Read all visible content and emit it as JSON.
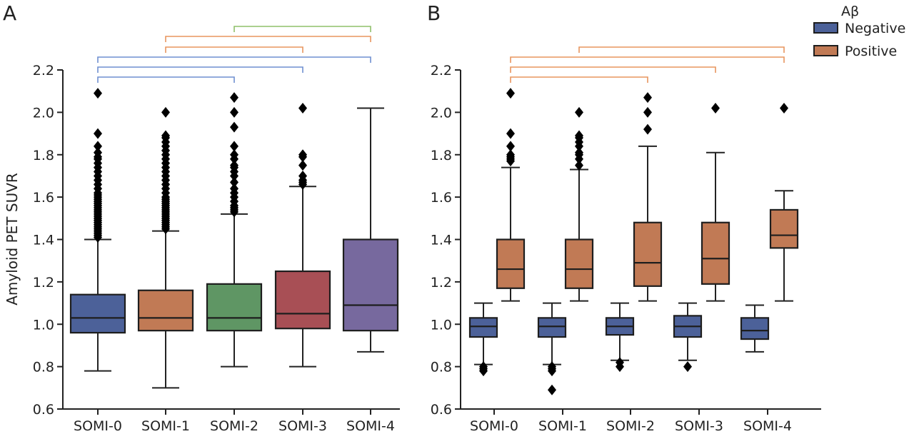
{
  "chart_data": [
    {
      "panel": "A",
      "type": "box",
      "title": "",
      "ylabel": "Amyloid PET SUVR",
      "xlabel": "",
      "ylim": [
        0.6,
        2.2
      ],
      "yticks": [
        "0.6",
        "0.8",
        "1.0",
        "1.2",
        "1.4",
        "1.6",
        "1.8",
        "2.0",
        "2.2"
      ],
      "categories": [
        "SOMI-0",
        "SOMI-1",
        "SOMI-2",
        "SOMI-3",
        "SOMI-4"
      ],
      "series": [
        {
          "name": "All",
          "boxes": [
            {
              "category": "SOMI-0",
              "color": "#4c6199",
              "whisker_low": 0.78,
              "q1": 0.96,
              "median": 1.03,
              "q3": 1.14,
              "whisker_high": 1.4,
              "outliers": [
                1.41,
                1.42,
                1.43,
                1.44,
                1.45,
                1.46,
                1.47,
                1.48,
                1.49,
                1.5,
                1.51,
                1.52,
                1.53,
                1.54,
                1.55,
                1.56,
                1.57,
                1.58,
                1.59,
                1.6,
                1.61,
                1.62,
                1.64,
                1.66,
                1.68,
                1.7,
                1.72,
                1.74,
                1.76,
                1.78,
                1.79,
                1.81,
                1.84,
                1.9,
                2.09
              ]
            },
            {
              "category": "SOMI-1",
              "color": "#c17a55",
              "whisker_low": 0.7,
              "q1": 0.97,
              "median": 1.03,
              "q3": 1.16,
              "whisker_high": 1.44,
              "outliers": [
                1.45,
                1.46,
                1.47,
                1.48,
                1.49,
                1.5,
                1.51,
                1.52,
                1.53,
                1.54,
                1.55,
                1.56,
                1.57,
                1.58,
                1.59,
                1.6,
                1.62,
                1.64,
                1.66,
                1.68,
                1.7,
                1.72,
                1.74,
                1.76,
                1.78,
                1.8,
                1.82,
                1.84,
                1.86,
                1.88,
                1.89,
                2.0
              ]
            },
            {
              "category": "SOMI-2",
              "color": "#5f9664",
              "whisker_low": 0.8,
              "q1": 0.97,
              "median": 1.03,
              "q3": 1.19,
              "whisker_high": 1.52,
              "outliers": [
                1.53,
                1.54,
                1.55,
                1.56,
                1.58,
                1.6,
                1.62,
                1.64,
                1.67,
                1.7,
                1.72,
                1.74,
                1.75,
                1.78,
                1.8,
                1.84,
                1.93,
                2.0,
                2.07
              ]
            },
            {
              "category": "SOMI-3",
              "color": "#a84f55",
              "whisker_low": 0.8,
              "q1": 0.98,
              "median": 1.05,
              "q3": 1.25,
              "whisker_high": 1.65,
              "outliers": [
                1.66,
                1.67,
                1.68,
                1.7,
                1.75,
                1.79,
                1.8,
                2.02
              ]
            },
            {
              "category": "SOMI-4",
              "color": "#77699e",
              "whisker_low": 0.87,
              "q1": 0.97,
              "median": 1.09,
              "q3": 1.4,
              "whisker_high": 2.02,
              "outliers": []
            }
          ]
        }
      ],
      "significance_brackets": [
        {
          "from": "SOMI-0",
          "to": "SOMI-2",
          "color": "#6f8fd0"
        },
        {
          "from": "SOMI-0",
          "to": "SOMI-3",
          "color": "#6f8fd0"
        },
        {
          "from": "SOMI-0",
          "to": "SOMI-4",
          "color": "#6f8fd0"
        },
        {
          "from": "SOMI-1",
          "to": "SOMI-3",
          "color": "#e8955f"
        },
        {
          "from": "SOMI-1",
          "to": "SOMI-4",
          "color": "#e8955f"
        },
        {
          "from": "SOMI-2",
          "to": "SOMI-4",
          "color": "#8fc06a"
        }
      ]
    },
    {
      "panel": "B",
      "type": "box",
      "title": "",
      "ylabel": "",
      "xlabel": "",
      "ylim": [
        0.6,
        2.2
      ],
      "yticks": [
        "0.6",
        "0.8",
        "1.0",
        "1.2",
        "1.4",
        "1.6",
        "1.8",
        "2.0",
        "2.2"
      ],
      "categories": [
        "SOMI-0",
        "SOMI-1",
        "SOMI-2",
        "SOMI-3",
        "SOMI-4"
      ],
      "legend": {
        "title": "Aβ",
        "position": "top-right"
      },
      "series": [
        {
          "name": "Negative",
          "color": "#4c6199",
          "boxes": [
            {
              "category": "SOMI-0",
              "whisker_low": 0.81,
              "q1": 0.94,
              "median": 0.99,
              "q3": 1.03,
              "whisker_high": 1.1,
              "outliers": [
                0.78,
                0.79,
                0.8
              ]
            },
            {
              "category": "SOMI-1",
              "whisker_low": 0.81,
              "q1": 0.94,
              "median": 0.99,
              "q3": 1.03,
              "whisker_high": 1.1,
              "outliers": [
                0.78,
                0.79,
                0.8,
                0.69
              ]
            },
            {
              "category": "SOMI-2",
              "whisker_low": 0.83,
              "q1": 0.95,
              "median": 0.99,
              "q3": 1.03,
              "whisker_high": 1.1,
              "outliers": [
                0.82,
                0.8
              ]
            },
            {
              "category": "SOMI-3",
              "whisker_low": 0.83,
              "q1": 0.94,
              "median": 0.99,
              "q3": 1.04,
              "whisker_high": 1.1,
              "outliers": [
                0.8
              ]
            },
            {
              "category": "SOMI-4",
              "whisker_low": 0.87,
              "q1": 0.93,
              "median": 0.97,
              "q3": 1.03,
              "whisker_high": 1.09,
              "outliers": []
            }
          ]
        },
        {
          "name": "Positive",
          "color": "#c17a55",
          "boxes": [
            {
              "category": "SOMI-0",
              "whisker_low": 1.11,
              "q1": 1.17,
              "median": 1.26,
              "q3": 1.4,
              "whisker_high": 1.74,
              "outliers": [
                1.77,
                1.78,
                1.79,
                1.8,
                1.84,
                1.9,
                2.09
              ]
            },
            {
              "category": "SOMI-1",
              "whisker_low": 1.11,
              "q1": 1.17,
              "median": 1.26,
              "q3": 1.4,
              "whisker_high": 1.73,
              "outliers": [
                1.75,
                1.78,
                1.8,
                1.81,
                1.84,
                1.86,
                1.88,
                1.89,
                2.0
              ]
            },
            {
              "category": "SOMI-2",
              "whisker_low": 1.11,
              "q1": 1.18,
              "median": 1.29,
              "q3": 1.48,
              "whisker_high": 1.84,
              "outliers": [
                1.92,
                2.0,
                2.07
              ]
            },
            {
              "category": "SOMI-3",
              "whisker_low": 1.11,
              "q1": 1.19,
              "median": 1.31,
              "q3": 1.48,
              "whisker_high": 1.81,
              "outliers": [
                2.02
              ]
            },
            {
              "category": "SOMI-4",
              "whisker_low": 1.11,
              "q1": 1.36,
              "median": 1.42,
              "q3": 1.54,
              "whisker_high": 1.63,
              "outliers": [
                2.02
              ]
            }
          ]
        }
      ],
      "significance_brackets": [
        {
          "from": "SOMI-0",
          "to": "SOMI-2",
          "color": "#e8955f"
        },
        {
          "from": "SOMI-0",
          "to": "SOMI-3",
          "color": "#e8955f"
        },
        {
          "from": "SOMI-0",
          "to": "SOMI-4",
          "color": "#e8955f"
        },
        {
          "from": "SOMI-1",
          "to": "SOMI-4",
          "color": "#e8955f"
        }
      ]
    }
  ],
  "labels": {
    "panel_a": "A",
    "panel_b": "B",
    "legend_title": "Aβ",
    "legend_negative": "Negative",
    "legend_positive": "Positive",
    "ylabel": "Amyloid PET SUVR"
  },
  "colors": {
    "negative": "#4c6199",
    "positive": "#c17a55"
  }
}
